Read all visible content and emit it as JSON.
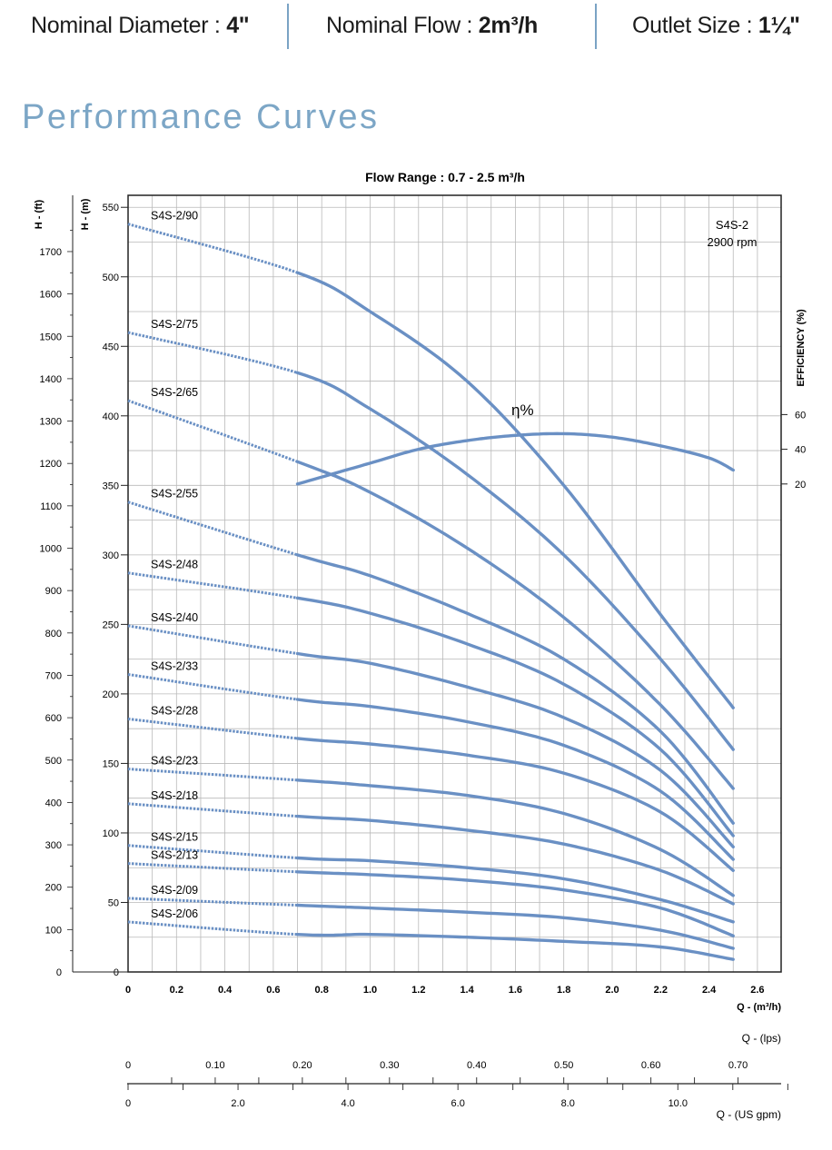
{
  "header": {
    "diameter_label": "Nominal Diameter : ",
    "diameter_value": "4\"",
    "flow_label": "Nominal Flow : ",
    "flow_value": "2m³/h",
    "outlet_label": "Outlet Size : ",
    "outlet_value": "1¼\""
  },
  "page_title": "Performance Curves",
  "chart_data": {
    "type": "line",
    "title": "Flow Range : 0.7 - 2.5 m³/h",
    "info_model": "S4S-2",
    "info_speed": "2900 rpm",
    "xlabel": "Q - (m³/h)",
    "ylabel": "H - (m)",
    "ylabel_ft": "H - (ft)",
    "y2label": "EFFICIENCY (%)",
    "xlim": [
      0,
      2.7
    ],
    "ylim": [
      0,
      560
    ],
    "grid": true,
    "x_ticks": [
      "0",
      "0.2",
      "0.4",
      "0.6",
      "0.8",
      "1.0",
      "1.2",
      "1.4",
      "1.6",
      "1.8",
      "2.0",
      "2.2",
      "2.4",
      "2.6"
    ],
    "y_ticks": [
      "0",
      "50",
      "100",
      "150",
      "200",
      "250",
      "300",
      "350",
      "400",
      "450",
      "500",
      "550"
    ],
    "ft_ticks": [
      "0",
      "100",
      "200",
      "300",
      "400",
      "500",
      "600",
      "700",
      "800",
      "900",
      "1000",
      "1100",
      "1200",
      "1300",
      "1400",
      "1500",
      "1600",
      "1700"
    ],
    "eff_ticks": [
      "20",
      "40",
      "60"
    ],
    "lps_label": "Q - (lps)",
    "lps_ticks": [
      "0",
      "0.10",
      "0.20",
      "0.30",
      "0.40",
      "0.50",
      "0.60",
      "0.70"
    ],
    "gpm_label": "Q - (US gpm)",
    "gpm_ticks": [
      "0",
      "2.0",
      "4.0",
      "6.0",
      "8.0",
      "10.0"
    ],
    "dashed_range": [
      0,
      0.7
    ],
    "solid_range": [
      0.7,
      2.5
    ],
    "series": [
      {
        "name": "S4S-2/90",
        "points": [
          [
            0,
            538
          ],
          [
            0.7,
            503
          ],
          [
            1.0,
            475
          ],
          [
            1.4,
            425
          ],
          [
            1.8,
            350
          ],
          [
            2.2,
            257
          ],
          [
            2.5,
            190
          ]
        ]
      },
      {
        "name": "S4S-2/75",
        "points": [
          [
            0,
            460
          ],
          [
            0.7,
            431
          ],
          [
            1.0,
            405
          ],
          [
            1.4,
            358
          ],
          [
            1.8,
            300
          ],
          [
            2.2,
            225
          ],
          [
            2.5,
            160
          ]
        ]
      },
      {
        "name": "S4S-2/65",
        "points": [
          [
            0,
            411
          ],
          [
            0.7,
            367
          ],
          [
            1.0,
            345
          ],
          [
            1.4,
            305
          ],
          [
            1.8,
            255
          ],
          [
            2.2,
            192
          ],
          [
            2.5,
            132
          ]
        ]
      },
      {
        "name": "S4S-2/55",
        "points": [
          [
            0,
            338
          ],
          [
            0.7,
            300
          ],
          [
            1.0,
            285
          ],
          [
            1.4,
            258
          ],
          [
            1.8,
            225
          ],
          [
            2.2,
            173
          ],
          [
            2.5,
            107
          ]
        ]
      },
      {
        "name": "S4S-2/48",
        "points": [
          [
            0,
            287
          ],
          [
            0.7,
            269
          ],
          [
            1.0,
            258
          ],
          [
            1.4,
            236
          ],
          [
            1.8,
            207
          ],
          [
            2.2,
            160
          ],
          [
            2.5,
            98
          ]
        ]
      },
      {
        "name": "S4S-2/40",
        "points": [
          [
            0,
            249
          ],
          [
            0.7,
            229
          ],
          [
            1.0,
            222
          ],
          [
            1.4,
            205
          ],
          [
            1.8,
            183
          ],
          [
            2.2,
            145
          ],
          [
            2.5,
            90
          ]
        ]
      },
      {
        "name": "S4S-2/33",
        "points": [
          [
            0,
            214
          ],
          [
            0.7,
            196
          ],
          [
            1.0,
            191
          ],
          [
            1.4,
            180
          ],
          [
            1.8,
            163
          ],
          [
            2.2,
            130
          ],
          [
            2.5,
            81
          ]
        ]
      },
      {
        "name": "S4S-2/28",
        "points": [
          [
            0,
            182
          ],
          [
            0.7,
            168
          ],
          [
            1.0,
            164
          ],
          [
            1.4,
            156
          ],
          [
            1.8,
            143
          ],
          [
            2.2,
            115
          ],
          [
            2.5,
            73
          ]
        ]
      },
      {
        "name": "S4S-2/23",
        "points": [
          [
            0,
            146
          ],
          [
            0.7,
            138
          ],
          [
            1.0,
            134
          ],
          [
            1.4,
            127
          ],
          [
            1.8,
            114
          ],
          [
            2.2,
            88
          ],
          [
            2.5,
            55
          ]
        ]
      },
      {
        "name": "S4S-2/18",
        "points": [
          [
            0,
            121
          ],
          [
            0.7,
            112
          ],
          [
            1.0,
            109
          ],
          [
            1.4,
            102
          ],
          [
            1.8,
            92
          ],
          [
            2.2,
            73
          ],
          [
            2.5,
            49
          ]
        ]
      },
      {
        "name": "S4S-2/15",
        "points": [
          [
            0,
            91
          ],
          [
            0.7,
            82
          ],
          [
            1.0,
            80
          ],
          [
            1.4,
            75
          ],
          [
            1.8,
            67
          ],
          [
            2.2,
            52
          ],
          [
            2.5,
            36
          ]
        ]
      },
      {
        "name": "S4S-2/13",
        "points": [
          [
            0,
            78
          ],
          [
            0.7,
            72
          ],
          [
            1.0,
            70
          ],
          [
            1.4,
            66
          ],
          [
            1.8,
            59
          ],
          [
            2.2,
            46
          ],
          [
            2.5,
            26
          ]
        ]
      },
      {
        "name": "S4S-2/09",
        "points": [
          [
            0,
            53
          ],
          [
            0.7,
            48
          ],
          [
            1.0,
            46
          ],
          [
            1.4,
            43
          ],
          [
            1.8,
            39
          ],
          [
            2.2,
            30
          ],
          [
            2.5,
            17
          ]
        ]
      },
      {
        "name": "S4S-2/06",
        "points": [
          [
            0,
            36
          ],
          [
            0.7,
            27
          ],
          [
            1.0,
            27
          ],
          [
            1.4,
            25
          ],
          [
            1.8,
            22
          ],
          [
            2.2,
            18
          ],
          [
            2.5,
            9
          ]
        ]
      }
    ],
    "efficiency": {
      "name": "η%",
      "points": [
        [
          0.7,
          20
        ],
        [
          1.0,
          32
        ],
        [
          1.2,
          40
        ],
        [
          1.4,
          45
        ],
        [
          1.6,
          48
        ],
        [
          1.8,
          49
        ],
        [
          2.0,
          47
        ],
        [
          2.2,
          42
        ],
        [
          2.4,
          35
        ],
        [
          2.5,
          28
        ]
      ]
    }
  }
}
